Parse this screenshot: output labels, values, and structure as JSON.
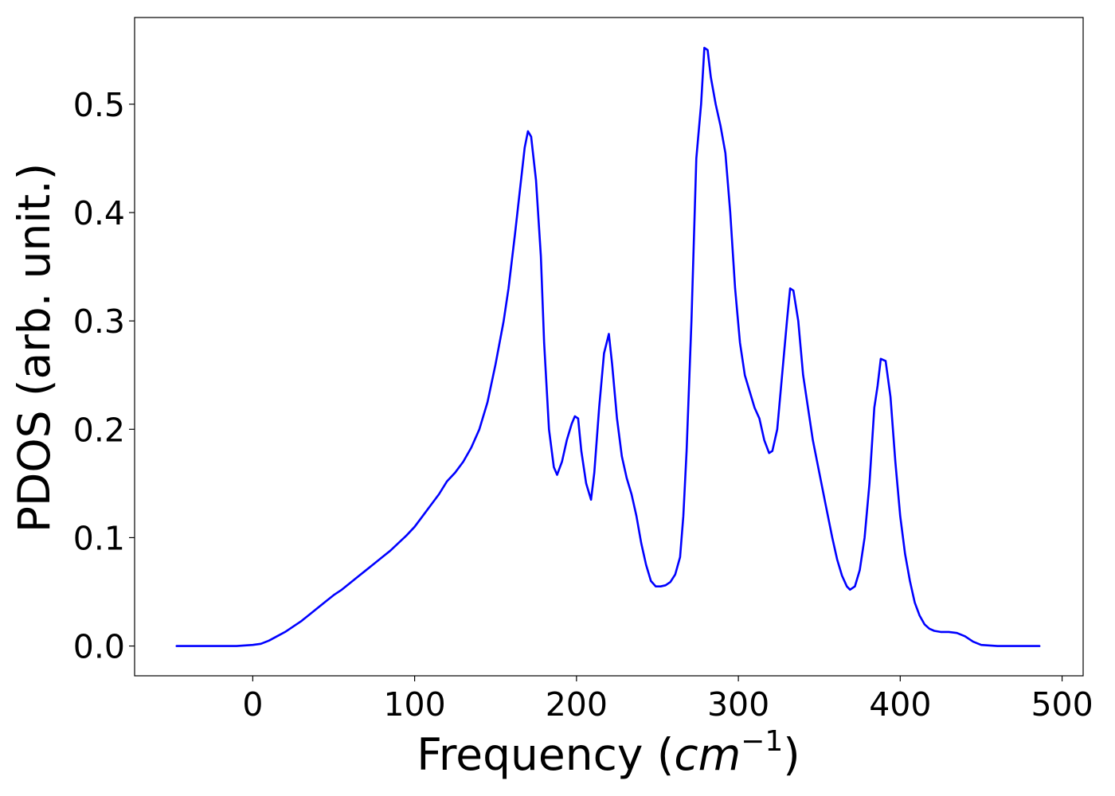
{
  "chart_data": {
    "type": "line",
    "title": "",
    "xlabel": "Frequency (",
    "xlabel_math": "cm",
    "xlabel_sup": "−1",
    "xlabel_close": ")",
    "ylabel": "PDOS (arb. unit.)",
    "xlim": [
      -73,
      513
    ],
    "ylim": [
      -0.0275,
      0.58
    ],
    "xticks": [
      0,
      100,
      200,
      300,
      400,
      500
    ],
    "xtick_labels": [
      "0",
      "100",
      "200",
      "300",
      "400",
      "500"
    ],
    "yticks": [
      0.0,
      0.1,
      0.2,
      0.3,
      0.4,
      0.5
    ],
    "ytick_labels": [
      "0.0",
      "0.1",
      "0.2",
      "0.3",
      "0.4",
      "0.5"
    ],
    "grid": false,
    "legend": "none",
    "series": [
      {
        "color": "#0000ff",
        "x": [
          -47,
          -30,
          -10,
          0,
          5,
          10,
          15,
          20,
          25,
          30,
          35,
          40,
          45,
          50,
          55,
          60,
          65,
          70,
          75,
          80,
          85,
          90,
          95,
          100,
          105,
          110,
          115,
          120,
          125,
          130,
          135,
          140,
          145,
          150,
          155,
          158,
          162,
          165,
          168,
          170,
          172,
          175,
          178,
          180,
          183,
          186,
          188,
          191,
          194,
          197,
          199,
          201,
          203,
          206,
          209,
          211,
          214,
          217,
          220,
          222,
          225,
          228,
          231,
          234,
          237,
          240,
          243,
          246,
          249,
          252,
          255,
          258,
          261,
          264,
          266,
          268,
          271,
          274,
          277,
          279,
          281,
          283,
          286,
          289,
          292,
          295,
          298,
          301,
          304,
          307,
          310,
          313,
          316,
          319,
          321,
          324,
          327,
          330,
          332,
          334,
          337,
          340,
          343,
          346,
          350,
          354,
          358,
          361,
          364,
          367,
          369,
          372,
          375,
          378,
          381,
          384,
          386,
          388,
          391,
          394,
          397,
          400,
          403,
          406,
          409,
          412,
          415,
          418,
          421,
          425,
          430,
          435,
          440,
          445,
          450,
          460,
          470,
          480,
          486
        ],
        "y": [
          0.0,
          0.0,
          0.0,
          0.001,
          0.002,
          0.005,
          0.009,
          0.013,
          0.018,
          0.023,
          0.029,
          0.035,
          0.041,
          0.047,
          0.052,
          0.058,
          0.064,
          0.07,
          0.076,
          0.082,
          0.088,
          0.095,
          0.102,
          0.11,
          0.12,
          0.13,
          0.14,
          0.152,
          0.16,
          0.17,
          0.183,
          0.2,
          0.225,
          0.26,
          0.3,
          0.33,
          0.38,
          0.42,
          0.46,
          0.475,
          0.47,
          0.43,
          0.36,
          0.28,
          0.2,
          0.165,
          0.158,
          0.17,
          0.19,
          0.205,
          0.212,
          0.21,
          0.18,
          0.15,
          0.135,
          0.16,
          0.22,
          0.27,
          0.288,
          0.26,
          0.21,
          0.175,
          0.155,
          0.14,
          0.12,
          0.095,
          0.075,
          0.06,
          0.055,
          0.055,
          0.056,
          0.059,
          0.066,
          0.082,
          0.12,
          0.18,
          0.3,
          0.45,
          0.5,
          0.552,
          0.55,
          0.525,
          0.5,
          0.48,
          0.455,
          0.4,
          0.33,
          0.28,
          0.25,
          0.235,
          0.22,
          0.21,
          0.19,
          0.178,
          0.18,
          0.2,
          0.25,
          0.3,
          0.33,
          0.328,
          0.3,
          0.25,
          0.22,
          0.19,
          0.16,
          0.13,
          0.1,
          0.08,
          0.065,
          0.055,
          0.052,
          0.055,
          0.07,
          0.1,
          0.15,
          0.22,
          0.24,
          0.265,
          0.263,
          0.23,
          0.17,
          0.12,
          0.085,
          0.06,
          0.04,
          0.028,
          0.02,
          0.016,
          0.014,
          0.013,
          0.013,
          0.012,
          0.009,
          0.004,
          0.001,
          0.0,
          0.0,
          0.0,
          0.0
        ]
      }
    ]
  }
}
